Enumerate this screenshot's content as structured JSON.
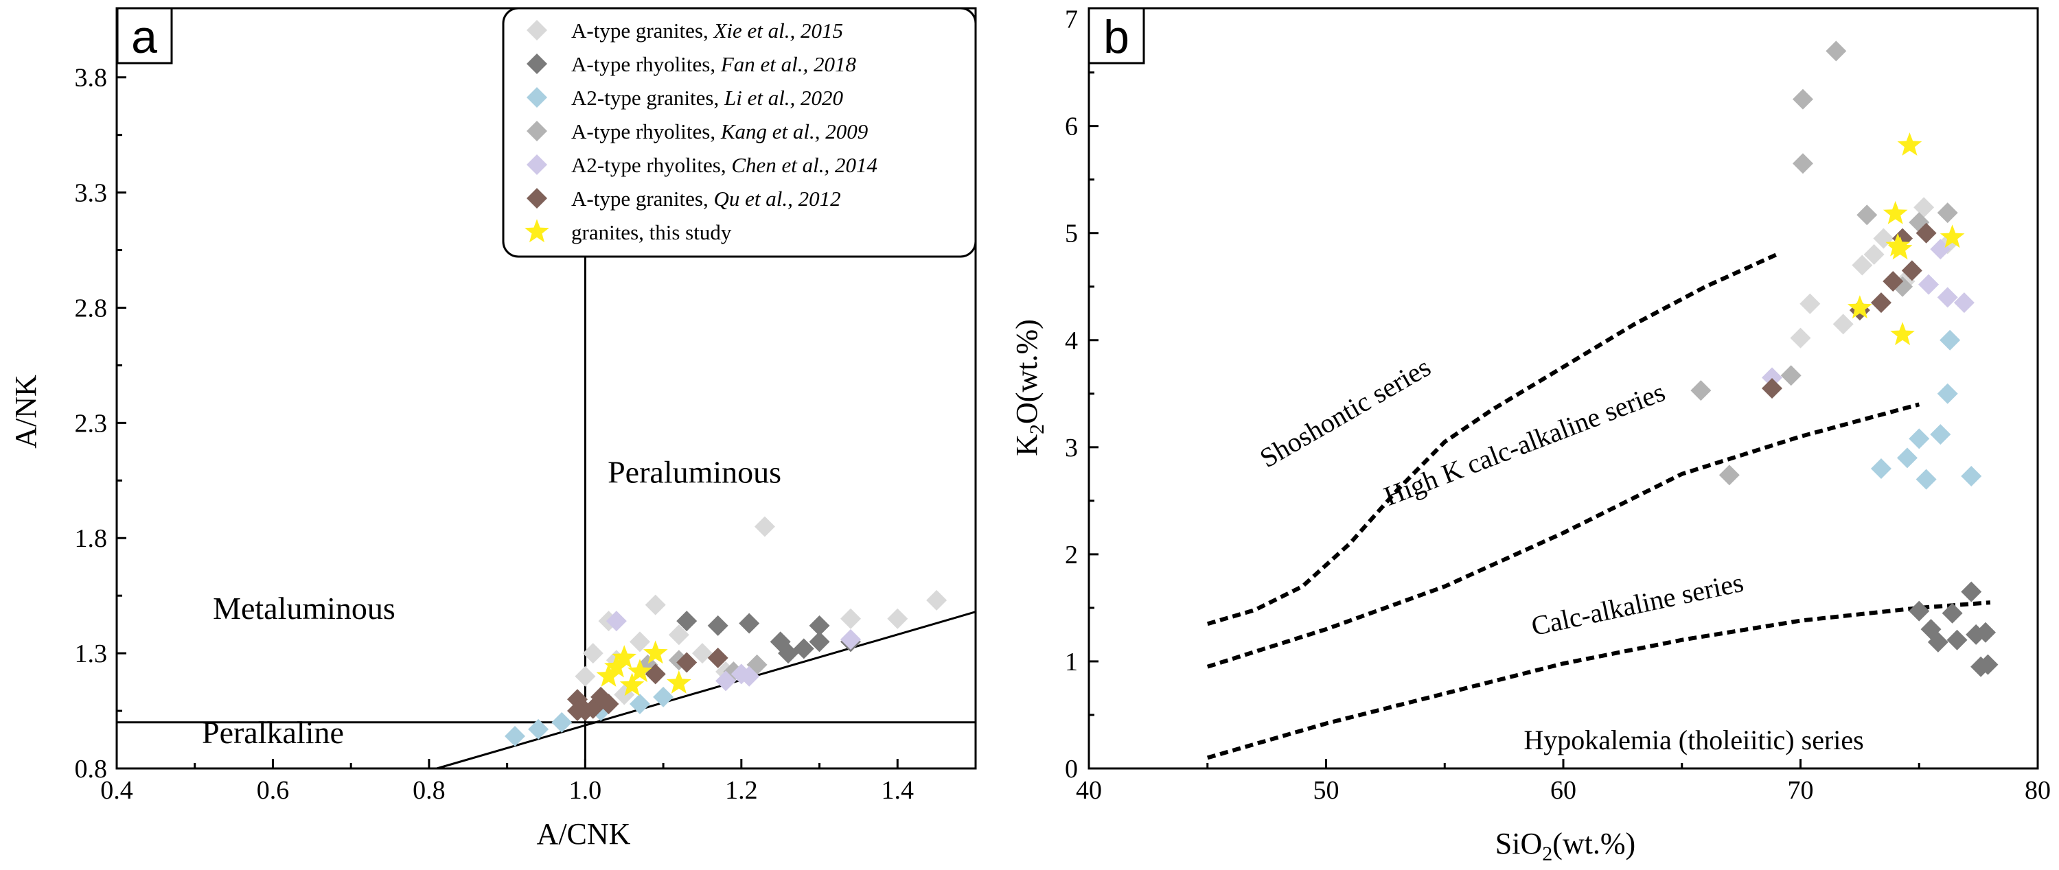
{
  "chart_data": [
    {
      "type": "scatter",
      "panel_label": "a",
      "xlabel": "A/CNK",
      "ylabel": "A/NK",
      "xlim": [
        0.4,
        1.5
      ],
      "ylim": [
        0.8,
        4.1
      ],
      "x_ticks": [
        0.4,
        0.6,
        0.8,
        1.0,
        1.2,
        1.4
      ],
      "x_tick_labels": [
        "0.4",
        "0.6",
        "0.8",
        "1.0",
        "1.2",
        "1.4"
      ],
      "y_ticks": [
        0.8,
        1.3,
        1.8,
        2.3,
        2.8,
        3.3,
        3.8
      ],
      "y_tick_labels": [
        "0.8",
        "1.3",
        "1.8",
        "2.3",
        "2.8",
        "3.3",
        "3.8"
      ],
      "grid": false,
      "legend_position": "top-right",
      "regions": [
        {
          "label": "Metaluminous",
          "x": 0.64,
          "y": 1.45
        },
        {
          "label": "Peraluminous",
          "x": 1.14,
          "y": 2.04
        },
        {
          "label": "Peralkaline",
          "x": 0.6,
          "y": 0.91
        }
      ],
      "reference_lines": [
        {
          "name": "A/CNK=1",
          "points": [
            [
              1.0,
              0.8
            ],
            [
              1.0,
              3.02
            ]
          ]
        },
        {
          "name": "A/NK=1",
          "points": [
            [
              0.4,
              1.0
            ],
            [
              1.5,
              1.0
            ]
          ]
        },
        {
          "name": "boundary",
          "points": [
            [
              0.81,
              0.8
            ],
            [
              1.5,
              1.48
            ]
          ]
        }
      ],
      "series": [
        {
          "name": "A-type granites, Xie et al., 2015",
          "legend_plain": "A-type granites, ",
          "legend_italic": "Xie et al., 2015",
          "color": "#d9d9d9",
          "marker": "diamond",
          "x": [
            1.0,
            1.01,
            1.03,
            1.04,
            1.05,
            1.07,
            1.09,
            1.12,
            1.15,
            1.18,
            1.23,
            1.34,
            1.4,
            1.45
          ],
          "y": [
            1.2,
            1.3,
            1.44,
            1.27,
            1.12,
            1.35,
            1.51,
            1.38,
            1.3,
            1.22,
            1.85,
            1.45,
            1.45,
            1.53
          ]
        },
        {
          "name": "A-type rhyolites, Fan et al., 2018",
          "legend_plain": "A-type rhyolites, ",
          "legend_italic": "Fan et al., 2018",
          "color": "#7a7a7a",
          "marker": "diamond",
          "x": [
            1.13,
            1.17,
            1.21,
            1.25,
            1.26,
            1.28,
            1.3,
            1.3,
            1.34
          ],
          "y": [
            1.44,
            1.42,
            1.43,
            1.35,
            1.3,
            1.32,
            1.35,
            1.42,
            1.35
          ]
        },
        {
          "name": "A2-type granites, Li et al., 2020",
          "legend_plain": "A2-type granites, ",
          "legend_italic": "Li et al., 2020",
          "color": "#a9cfe0",
          "marker": "diamond",
          "x": [
            0.91,
            0.94,
            0.97,
            1.02,
            1.07,
            1.1
          ],
          "y": [
            0.94,
            0.97,
            1.0,
            1.05,
            1.08,
            1.11
          ]
        },
        {
          "name": "A-type rhyolites, Kang et al., 2009",
          "legend_plain": "A-type rhyolites, ",
          "legend_italic": "Kang et al., 2009",
          "color": "#b3b3b3",
          "marker": "diamond",
          "x": [
            1.08,
            1.12,
            1.19,
            1.22
          ],
          "y": [
            1.25,
            1.27,
            1.22,
            1.25
          ]
        },
        {
          "name": "A2-type rhyolites, Chen et al., 2014",
          "legend_plain": "A2-type rhyolites, ",
          "legend_italic": "Chen et al., 2014",
          "color": "#cfc8e8",
          "marker": "diamond",
          "x": [
            1.04,
            1.18,
            1.2,
            1.21,
            1.34
          ],
          "y": [
            1.44,
            1.18,
            1.21,
            1.2,
            1.36
          ]
        },
        {
          "name": "A-type granites, Qu et al., 2012",
          "legend_plain": "A-type granites, ",
          "legend_italic": "Qu et al., 2012",
          "color": "#7f6159",
          "marker": "diamond",
          "x": [
            0.99,
            1.0,
            0.99,
            1.01,
            1.02,
            1.03,
            1.09,
            1.13,
            1.17
          ],
          "y": [
            1.1,
            1.05,
            1.05,
            1.06,
            1.11,
            1.08,
            1.21,
            1.26,
            1.28
          ]
        },
        {
          "name": "granites, this study",
          "legend_plain": "granites, this study",
          "legend_italic": "",
          "color": "#ffee1a",
          "label_color": "#e8111a",
          "marker": "star",
          "x": [
            1.03,
            1.04,
            1.05,
            1.06,
            1.07,
            1.09,
            1.12
          ],
          "y": [
            1.2,
            1.24,
            1.28,
            1.16,
            1.22,
            1.3,
            1.17
          ]
        }
      ]
    },
    {
      "type": "scatter",
      "panel_label": "b",
      "xlabel_main": "SiO",
      "xlabel_sub": "2",
      "xlabel_rest": "(wt.%)",
      "ylabel_main": "K",
      "ylabel_sub": "2",
      "ylabel_rest": "O(wt.%)",
      "xlim": [
        40,
        80
      ],
      "ylim": [
        0,
        7.1
      ],
      "x_ticks": [
        40,
        50,
        60,
        70,
        80
      ],
      "x_tick_labels": [
        "40",
        "50",
        "60",
        "70",
        "80"
      ],
      "y_ticks": [
        0,
        1,
        2,
        3,
        4,
        5,
        6,
        7
      ],
      "y_tick_labels": [
        "0",
        "1",
        "2",
        "3",
        "4",
        "5",
        "6",
        "7"
      ],
      "grid": false,
      "series_labels": [
        {
          "label": "Shoshontic series",
          "x": 51.0,
          "y": 3.25,
          "angle": -30
        },
        {
          "label": "High K calc-alkaline series",
          "x": 58.5,
          "y": 2.95,
          "angle": -21
        },
        {
          "label": "Calc-alkaline series",
          "x": 63.2,
          "y": 1.45,
          "angle": -12
        },
        {
          "label": "Hypokalemia (tholeiitic) series",
          "x": 65.5,
          "y": 0.18,
          "angle": 0
        }
      ],
      "boundary_lines": [
        {
          "name": "shoshonitic / high-K",
          "x": [
            45,
            47,
            49,
            51,
            53,
            55,
            57,
            60,
            63,
            66,
            69
          ],
          "y": [
            1.35,
            1.48,
            1.7,
            2.1,
            2.6,
            3.05,
            3.35,
            3.75,
            4.15,
            4.5,
            4.8
          ]
        },
        {
          "name": "high-K / calc-alkaline",
          "x": [
            45,
            50,
            55,
            60,
            65,
            70,
            75
          ],
          "y": [
            0.95,
            1.3,
            1.7,
            2.2,
            2.75,
            3.1,
            3.4
          ]
        },
        {
          "name": "calc-alkaline / tholeiitic",
          "x": [
            45,
            50,
            55,
            60,
            65,
            70,
            75,
            78
          ],
          "y": [
            0.1,
            0.42,
            0.7,
            0.98,
            1.2,
            1.38,
            1.5,
            1.55
          ]
        }
      ],
      "series": [
        {
          "name": "A-type granites, Xie et al., 2015",
          "color": "#d9d9d9",
          "marker": "diamond",
          "x": [
            70,
            70.4,
            71.8,
            72.6,
            73.1,
            73.5,
            74.4,
            75.2,
            76.2
          ],
          "y": [
            4.02,
            4.34,
            4.15,
            4.7,
            4.8,
            4.95,
            4.55,
            5.24,
            4.9
          ]
        },
        {
          "name": "A-type rhyolites, Fan et al., 2018",
          "color": "#7a7a7a",
          "marker": "diamond",
          "x": [
            75,
            75.5,
            75.8,
            76.4,
            76.6,
            77.2,
            77.4,
            77.6,
            77.8,
            77.9
          ],
          "y": [
            1.47,
            1.3,
            1.18,
            1.45,
            1.2,
            1.65,
            1.25,
            0.95,
            1.27,
            0.97
          ]
        },
        {
          "name": "A2-type granites, Li et al., 2020",
          "color": "#a9cfe0",
          "marker": "diamond",
          "x": [
            73.4,
            74.5,
            75.0,
            75.3,
            75.9,
            76.2,
            76.3,
            77.2
          ],
          "y": [
            2.8,
            2.9,
            3.08,
            2.7,
            3.12,
            3.5,
            4.0,
            2.73
          ]
        },
        {
          "name": "A-type rhyolites, Kang et al., 2009",
          "color": "#b3b3b3",
          "marker": "diamond",
          "x": [
            65.8,
            67.0,
            69.6,
            70.1,
            70.1,
            71.5,
            72.8,
            74.3,
            75.0,
            76.2
          ],
          "y": [
            3.53,
            2.74,
            3.67,
            6.25,
            5.65,
            6.7,
            5.17,
            4.5,
            5.1,
            5.19
          ]
        },
        {
          "name": "A2-type rhyolites, Chen et al., 2014",
          "color": "#cfc8e8",
          "marker": "diamond",
          "x": [
            68.8,
            75.4,
            75.9,
            76.2,
            76.9
          ],
          "y": [
            3.65,
            4.52,
            4.85,
            4.4,
            4.35
          ]
        },
        {
          "name": "A-type granites, Qu et al., 2012",
          "color": "#7f6159",
          "marker": "diamond",
          "x": [
            68.8,
            72.5,
            73.4,
            73.9,
            74.3,
            74.7,
            75.3
          ],
          "y": [
            3.55,
            4.28,
            4.35,
            4.55,
            4.95,
            4.65,
            5.0
          ]
        },
        {
          "name": "granites, this study",
          "color": "#ffee1a",
          "marker": "star",
          "x": [
            72.5,
            74.0,
            74.2,
            74.3,
            74.6,
            76.4,
            74.1
          ],
          "y": [
            4.3,
            5.18,
            4.85,
            4.05,
            5.82,
            4.96,
            4.88
          ]
        }
      ]
    }
  ]
}
